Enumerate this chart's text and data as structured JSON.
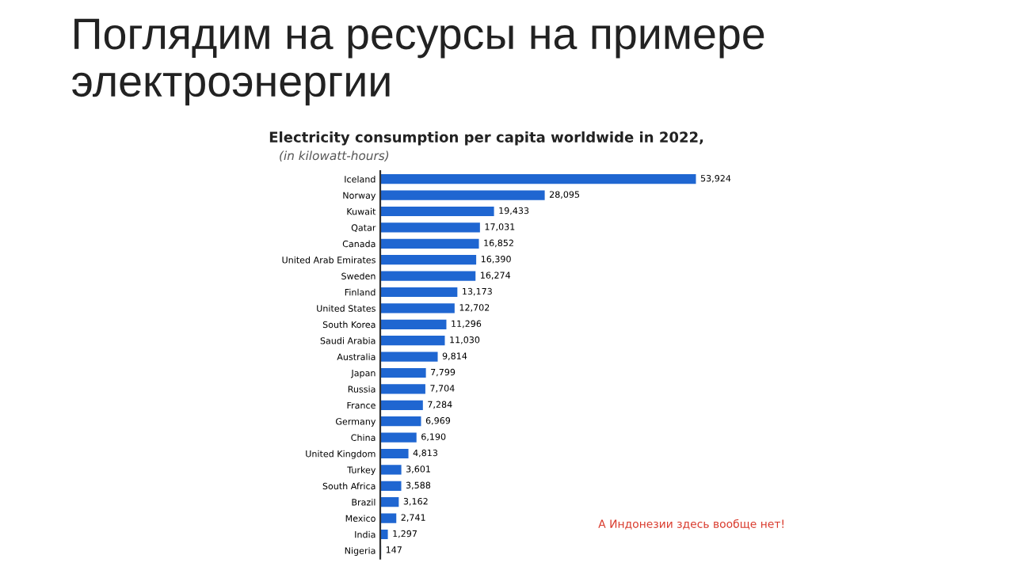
{
  "chart_data": {
    "type": "bar",
    "orientation": "horizontal",
    "title": "Electricity consumption per capita worldwide in 2022,",
    "subtitle": "(in kilowatt-hours)",
    "annotations": [
      "Поглядим на ресурсы на примере электроэнергии",
      "А Индонезии здесь вообще нет!"
    ],
    "categories": [
      "Iceland",
      "Norway",
      "Kuwait",
      "Qatar",
      "Canada",
      "United Arab Emirates",
      "Sweden",
      "Finland",
      "United States",
      "South Korea",
      "Saudi Arabia",
      "Australia",
      "Japan",
      "Russia",
      "France",
      "Germany",
      "China",
      "United Kingdom",
      "Turkey",
      "South Africa",
      "Brazil",
      "Mexico",
      "India",
      "Nigeria"
    ],
    "values": [
      53924,
      28095,
      19433,
      17031,
      16852,
      16390,
      16274,
      13173,
      12702,
      11296,
      11030,
      9814,
      7799,
      7704,
      7284,
      6969,
      6190,
      4813,
      3601,
      3588,
      3162,
      2741,
      1297,
      147
    ],
    "color": "#1f66d1",
    "value_labels": [
      "53,924",
      "28,095",
      "19,433",
      "17,031",
      "16,852",
      "16,390",
      "16,274",
      "13,173",
      "12,702",
      "11,296",
      "11,030",
      "9,814",
      "7,799",
      "7,704",
      "7,284",
      "6,969",
      "6,190",
      "4,813",
      "3,601",
      "3,588",
      "3,162",
      "2,741",
      "1,297",
      "147"
    ]
  }
}
